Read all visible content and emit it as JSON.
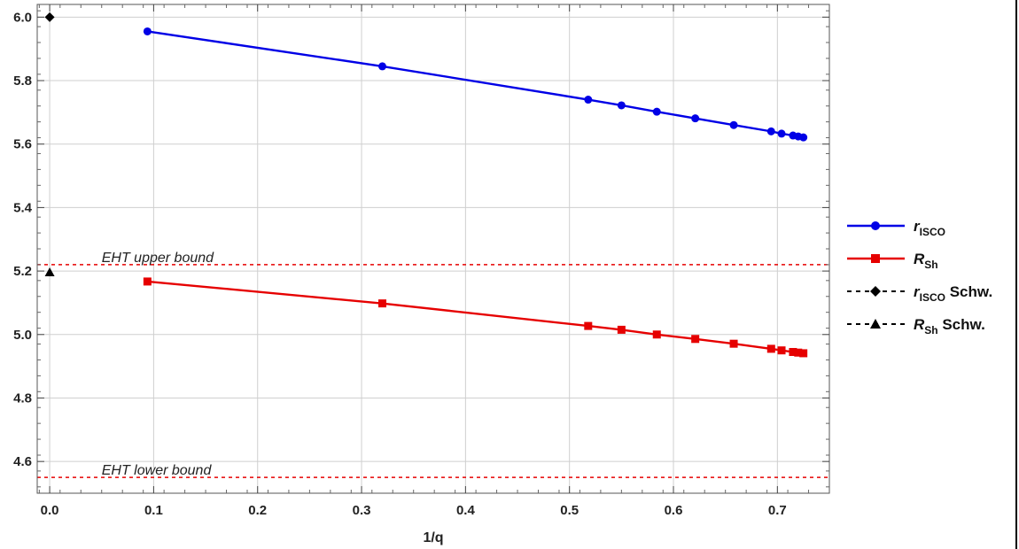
{
  "chart_data": {
    "type": "line",
    "title": "",
    "xlabel": "1/q",
    "ylabel": "",
    "xlim": [
      -0.012,
      0.75
    ],
    "ylim": [
      4.5,
      6.04
    ],
    "xticks": [
      "0.0",
      "0.1",
      "0.2",
      "0.3",
      "0.4",
      "0.5",
      "0.6",
      "0.7"
    ],
    "yticks": [
      "4.6",
      "4.8",
      "5.0",
      "5.2",
      "5.4",
      "5.6",
      "5.8",
      "6.0"
    ],
    "grid": true,
    "legend_position": "right",
    "series": [
      {
        "name": "r_ISCO",
        "legend_symbol": "r",
        "legend_sub": "ISCO",
        "legend_suffix": "",
        "color": "#0000e6",
        "marker": "circle",
        "line": "solid",
        "x": [
          0.094,
          0.32,
          0.518,
          0.55,
          0.584,
          0.621,
          0.658,
          0.694,
          0.704,
          0.715,
          0.72,
          0.725
        ],
        "y": [
          5.955,
          5.845,
          5.74,
          5.722,
          5.702,
          5.681,
          5.66,
          5.64,
          5.633,
          5.627,
          5.624,
          5.621
        ]
      },
      {
        "name": "R_Sh",
        "legend_symbol": "R",
        "legend_sub": "Sh",
        "legend_suffix": "",
        "color": "#e60000",
        "marker": "square",
        "line": "solid",
        "x": [
          0.094,
          0.32,
          0.518,
          0.55,
          0.584,
          0.621,
          0.658,
          0.694,
          0.704,
          0.715,
          0.72,
          0.725
        ],
        "y": [
          5.167,
          5.098,
          5.027,
          5.015,
          5.0,
          4.986,
          4.971,
          4.955,
          4.95,
          4.945,
          4.943,
          4.941
        ]
      },
      {
        "name": "r_ISCO Schw.",
        "legend_symbol": "r",
        "legend_sub": "ISCO",
        "legend_suffix": " Schw.",
        "color": "#000000",
        "marker": "diamond",
        "line": "dashed",
        "x": [
          0.0
        ],
        "y": [
          6.0
        ]
      },
      {
        "name": "R_Sh Schw.",
        "legend_symbol": "R",
        "legend_sub": "Sh",
        "legend_suffix": " Schw.",
        "color": "#000000",
        "marker": "triangle",
        "line": "dashed",
        "x": [
          0.0
        ],
        "y": [
          5.196
        ]
      }
    ],
    "reference_lines": [
      {
        "label": "EHT upper bound",
        "y": 5.22,
        "color": "#e60000",
        "style": "dashed"
      },
      {
        "label": "EHT lower bound",
        "y": 4.55,
        "color": "#e60000",
        "style": "dashed"
      }
    ]
  }
}
